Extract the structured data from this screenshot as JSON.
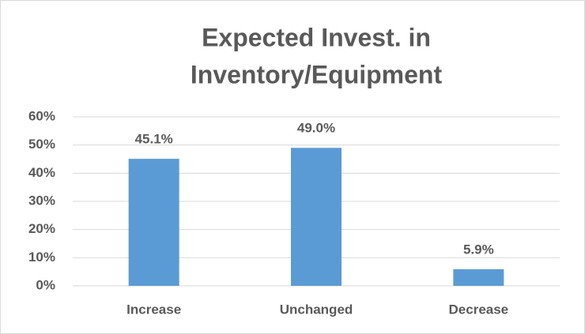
{
  "chart_data": {
    "type": "bar",
    "title": [
      "Expected Invest. in",
      "Inventory/Equipment"
    ],
    "categories": [
      "Increase",
      "Unchanged",
      "Decrease"
    ],
    "values": [
      45.1,
      49.0,
      5.9
    ],
    "value_labels": [
      "45.1%",
      "49.0%",
      "5.9%"
    ],
    "color": "#5b9bd5",
    "ylim": [
      0,
      60
    ],
    "yticks": [
      {
        "value": 0,
        "label": "0%"
      },
      {
        "value": 10,
        "label": "10%"
      },
      {
        "value": 20,
        "label": "20%"
      },
      {
        "value": 30,
        "label": "30%"
      },
      {
        "value": 40,
        "label": "40%"
      },
      {
        "value": 50,
        "label": "50%"
      },
      {
        "value": 60,
        "label": "60%"
      }
    ],
    "grid": true
  }
}
